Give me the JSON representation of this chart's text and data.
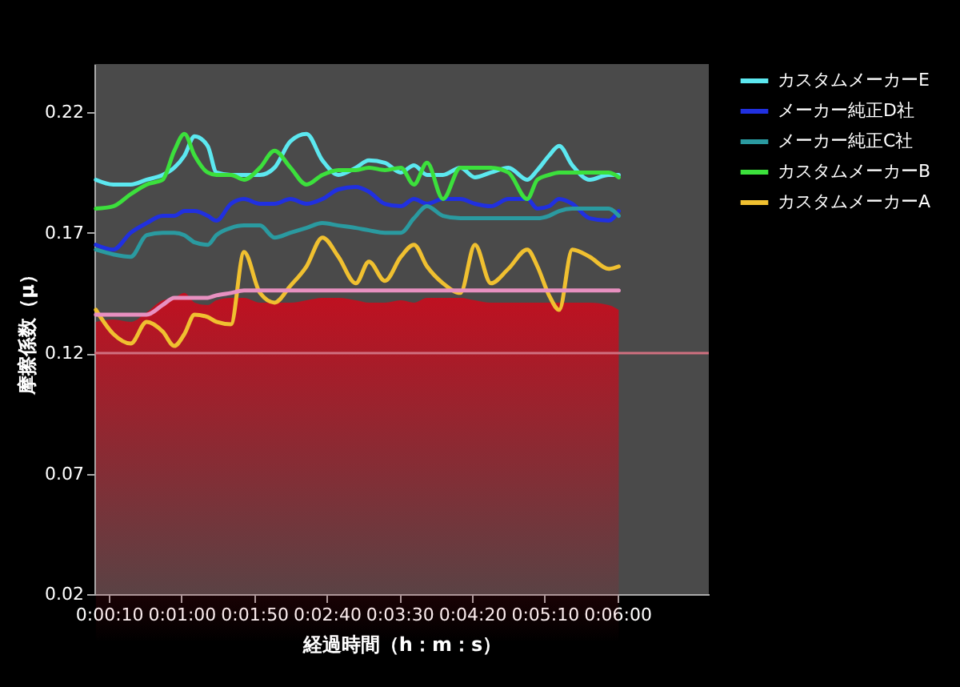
{
  "chart_data": {
    "type": "line",
    "xlabel": "経過時間（h：m：s）",
    "ylabel": "摩擦係数（μ）",
    "x": [
      1,
      13,
      25,
      36,
      47,
      55,
      62,
      69,
      78,
      84,
      94,
      103,
      114,
      124,
      135,
      146,
      157,
      168,
      180,
      189,
      200,
      211,
      220,
      229,
      240,
      252,
      262,
      273,
      285,
      298,
      305,
      313,
      320,
      329,
      341,
      354,
      361
    ],
    "xlim": [
      0,
      423
    ],
    "xticks": [
      {
        "value": 10,
        "label": "0:00:10"
      },
      {
        "value": 60,
        "label": "0:01:00"
      },
      {
        "value": 110,
        "label": "0:01:50"
      },
      {
        "value": 160,
        "label": "0:02:40"
      },
      {
        "value": 210,
        "label": "0:03:30"
      },
      {
        "value": 260,
        "label": "0:04:20"
      },
      {
        "value": 310,
        "label": "0:05:10"
      },
      {
        "value": 360,
        "label": "0:06:00"
      }
    ],
    "ylim": [
      0.02,
      0.24
    ],
    "yticks": [
      0.02,
      0.07,
      0.12,
      0.17,
      0.22
    ],
    "series": [
      {
        "name": "カスタムメーカーE",
        "color": "#5ce8f0",
        "values": [
          0.192,
          0.19,
          0.19,
          0.192,
          0.194,
          0.197,
          0.202,
          0.21,
          0.206,
          0.195,
          0.194,
          0.194,
          0.194,
          0.197,
          0.208,
          0.211,
          0.2,
          0.194,
          0.197,
          0.2,
          0.199,
          0.195,
          0.198,
          0.194,
          0.194,
          0.197,
          0.193,
          0.195,
          0.197,
          0.192,
          0.196,
          0.202,
          0.206,
          0.198,
          0.192,
          0.194,
          0.194
        ]
      },
      {
        "name": "メーカー純正D社",
        "color": "#2030e0",
        "values": [
          0.165,
          0.163,
          0.17,
          0.174,
          0.177,
          0.177,
          0.179,
          0.179,
          0.177,
          0.175,
          0.182,
          0.184,
          0.182,
          0.182,
          0.184,
          0.182,
          0.184,
          0.188,
          0.189,
          0.187,
          0.182,
          0.181,
          0.184,
          0.182,
          0.184,
          0.184,
          0.182,
          0.181,
          0.184,
          0.184,
          0.18,
          0.181,
          0.184,
          0.182,
          0.176,
          0.175,
          0.179
        ]
      },
      {
        "name": "メーカー純正C社",
        "color": "#2a9aa0",
        "values": [
          0.163,
          0.161,
          0.16,
          0.169,
          0.17,
          0.17,
          0.169,
          0.166,
          0.165,
          0.169,
          0.172,
          0.173,
          0.173,
          0.168,
          0.17,
          0.172,
          0.174,
          0.173,
          0.172,
          0.171,
          0.17,
          0.17,
          0.176,
          0.181,
          0.177,
          0.176,
          0.176,
          0.176,
          0.176,
          0.176,
          0.176,
          0.177,
          0.179,
          0.18,
          0.18,
          0.18,
          0.177
        ]
      },
      {
        "name": "カスタムメーカーB",
        "color": "#3ce03c",
        "values": [
          0.18,
          0.181,
          0.186,
          0.19,
          0.192,
          0.204,
          0.211,
          0.202,
          0.195,
          0.194,
          0.194,
          0.192,
          0.197,
          0.204,
          0.197,
          0.19,
          0.194,
          0.196,
          0.196,
          0.197,
          0.196,
          0.197,
          0.19,
          0.199,
          0.184,
          0.197,
          0.197,
          0.197,
          0.195,
          0.184,
          0.192,
          0.194,
          0.195,
          0.195,
          0.195,
          0.195,
          0.193
        ]
      },
      {
        "name": "カスタムメーカーA",
        "color": "#f0c030",
        "values": [
          0.138,
          0.128,
          0.124,
          0.133,
          0.129,
          0.123,
          0.128,
          0.136,
          0.135,
          0.133,
          0.132,
          0.162,
          0.145,
          0.141,
          0.148,
          0.156,
          0.168,
          0.16,
          0.149,
          0.158,
          0.15,
          0.16,
          0.165,
          0.156,
          0.149,
          0.145,
          0.165,
          0.149,
          0.155,
          0.163,
          0.156,
          0.144,
          0.138,
          0.163,
          0.16,
          0.155,
          0.156
        ]
      },
      {
        "type": "area",
        "color": "#c01020",
        "values": [
          0.133,
          0.134,
          0.133,
          0.137,
          0.142,
          0.143,
          0.145,
          0.141,
          0.14,
          0.142,
          0.143,
          0.143,
          0.141,
          0.141,
          0.141,
          0.142,
          0.143,
          0.143,
          0.142,
          0.141,
          0.141,
          0.142,
          0.141,
          0.143,
          0.143,
          0.143,
          0.142,
          0.141,
          0.141,
          0.141,
          0.141,
          0.141,
          0.141,
          0.141,
          0.141,
          0.14,
          0.138
        ]
      },
      {
        "color": "#e890c0",
        "values": [
          0.136,
          0.136,
          0.136,
          0.136,
          0.14,
          0.143,
          0.143,
          0.143,
          0.143,
          0.144,
          0.145,
          0.146,
          0.146,
          0.146,
          0.146,
          0.146,
          0.146,
          0.146,
          0.146,
          0.146,
          0.146,
          0.146,
          0.146,
          0.146,
          0.146,
          0.146,
          0.146,
          0.146,
          0.146,
          0.146,
          0.146,
          0.146,
          0.146,
          0.146,
          0.146,
          0.146,
          0.146
        ]
      }
    ],
    "ref_lines": [
      {
        "axis": "y",
        "value": 0.12,
        "color": "#d07080"
      }
    ],
    "legend": "right",
    "grid": false
  }
}
